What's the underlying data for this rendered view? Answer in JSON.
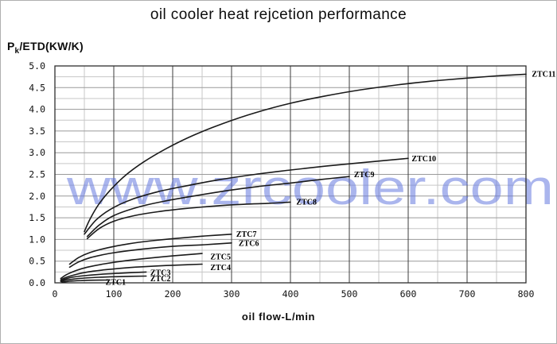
{
  "frame": {
    "background": "#ffffff",
    "border_color": "#b0b0b0"
  },
  "watermark": {
    "text": "www.zrcooler.com",
    "color": "#6679e0",
    "opacity": 0.55
  },
  "colors": {
    "curve": "#1a1a1a",
    "grid_minor": "#c7c7c7",
    "grid_major_h": "#9a9a9a",
    "grid_major_v": "#3c3c3c",
    "plot_border": "#2e2e2e",
    "tick_text": "#111111",
    "series_label_text": "#000000"
  },
  "chart_data": {
    "type": "line",
    "title": "oil cooler heat rejcetion performance",
    "xlabel": "oil flow-L/min",
    "ylabel": "Pk/ETD(KW/K)",
    "ylabel_parts": {
      "pre": "P",
      "sub": "k",
      "post": "/ETD(KW/K)"
    },
    "xlim": [
      0,
      800
    ],
    "ylim": [
      0,
      5
    ],
    "x_major_step": 100,
    "x_minor_step": 50,
    "y_major_step": 0.5,
    "y_minor_step": 0.25,
    "grid": true,
    "legend_position": "inline end-of-curve labels",
    "x_tick_labels": [
      "0",
      "100",
      "200",
      "300",
      "400",
      "500",
      "600",
      "700",
      "800"
    ],
    "y_tick_labels": [
      "0.0",
      "0.5",
      "1.0",
      "1.5",
      "2.0",
      "2.5",
      "3.0",
      "3.5",
      "4.0",
      "4.5",
      "5.0"
    ],
    "series": [
      {
        "name": "ZTC1",
        "label_xy": [
          86,
          0.015
        ],
        "points": [
          [
            12,
            0.015
          ],
          [
            20,
            0.03
          ],
          [
            30,
            0.042
          ],
          [
            45,
            0.052
          ],
          [
            65,
            0.06
          ],
          [
            90,
            0.065
          ]
        ]
      },
      {
        "name": "ZTC2",
        "label_xy": [
          162,
          0.105
        ],
        "points": [
          [
            10,
            0.03
          ],
          [
            18,
            0.06
          ],
          [
            30,
            0.085
          ],
          [
            50,
            0.11
          ],
          [
            75,
            0.128
          ],
          [
            110,
            0.143
          ],
          [
            155,
            0.155
          ]
        ]
      },
      {
        "name": "ZTC3",
        "label_xy": [
          162,
          0.235
        ],
        "points": [
          [
            10,
            0.05
          ],
          [
            18,
            0.09
          ],
          [
            30,
            0.13
          ],
          [
            50,
            0.165
          ],
          [
            75,
            0.195
          ],
          [
            110,
            0.222
          ],
          [
            155,
            0.25
          ]
        ]
      },
      {
        "name": "ZTC4",
        "label_xy": [
          264,
          0.36
        ],
        "points": [
          [
            10,
            0.07
          ],
          [
            20,
            0.13
          ],
          [
            35,
            0.19
          ],
          [
            55,
            0.25
          ],
          [
            85,
            0.3
          ],
          [
            120,
            0.345
          ],
          [
            160,
            0.38
          ],
          [
            200,
            0.405
          ],
          [
            250,
            0.43
          ]
        ]
      },
      {
        "name": "ZTC5",
        "label_xy": [
          264,
          0.6
        ],
        "points": [
          [
            10,
            0.1
          ],
          [
            20,
            0.19
          ],
          [
            35,
            0.28
          ],
          [
            55,
            0.36
          ],
          [
            85,
            0.44
          ],
          [
            120,
            0.51
          ],
          [
            160,
            0.57
          ],
          [
            200,
            0.62
          ],
          [
            250,
            0.675
          ]
        ]
      },
      {
        "name": "ZTC6",
        "label_xy": [
          312,
          0.92
        ],
        "points": [
          [
            25,
            0.36
          ],
          [
            40,
            0.48
          ],
          [
            60,
            0.58
          ],
          [
            90,
            0.67
          ],
          [
            125,
            0.74
          ],
          [
            165,
            0.8
          ],
          [
            210,
            0.85
          ],
          [
            255,
            0.88
          ],
          [
            300,
            0.92
          ]
        ]
      },
      {
        "name": "ZTC7",
        "label_xy": [
          308,
          1.13
        ],
        "points": [
          [
            25,
            0.43
          ],
          [
            40,
            0.58
          ],
          [
            60,
            0.7
          ],
          [
            90,
            0.81
          ],
          [
            125,
            0.9
          ],
          [
            165,
            0.97
          ],
          [
            210,
            1.03
          ],
          [
            255,
            1.08
          ],
          [
            300,
            1.12
          ]
        ]
      },
      {
        "name": "ZTC8",
        "label_xy": [
          410,
          1.87
        ],
        "points": [
          [
            55,
            1.02
          ],
          [
            75,
            1.25
          ],
          [
            100,
            1.42
          ],
          [
            135,
            1.55
          ],
          [
            175,
            1.64
          ],
          [
            220,
            1.71
          ],
          [
            270,
            1.77
          ],
          [
            320,
            1.81
          ],
          [
            360,
            1.83
          ],
          [
            400,
            1.86
          ]
        ]
      },
      {
        "name": "ZTC9",
        "label_xy": [
          508,
          2.5
        ],
        "points": [
          [
            55,
            1.07
          ],
          [
            75,
            1.33
          ],
          [
            100,
            1.55
          ],
          [
            140,
            1.74
          ],
          [
            185,
            1.88
          ],
          [
            235,
            2.0
          ],
          [
            290,
            2.12
          ],
          [
            345,
            2.22
          ],
          [
            400,
            2.3
          ],
          [
            450,
            2.38
          ],
          [
            500,
            2.45
          ]
        ]
      },
      {
        "name": "ZTC10",
        "label_xy": [
          606,
          2.87
        ],
        "points": [
          [
            50,
            1.12
          ],
          [
            70,
            1.45
          ],
          [
            95,
            1.7
          ],
          [
            130,
            1.92
          ],
          [
            175,
            2.1
          ],
          [
            225,
            2.24
          ],
          [
            280,
            2.38
          ],
          [
            340,
            2.5
          ],
          [
            400,
            2.6
          ],
          [
            460,
            2.69
          ],
          [
            520,
            2.77
          ],
          [
            600,
            2.87
          ]
        ]
      },
      {
        "name": "ZTC11",
        "label_xy": [
          810,
          4.82
        ],
        "points": [
          [
            50,
            1.18
          ],
          [
            60,
            1.48
          ],
          [
            75,
            1.82
          ],
          [
            95,
            2.15
          ],
          [
            120,
            2.48
          ],
          [
            150,
            2.78
          ],
          [
            190,
            3.1
          ],
          [
            235,
            3.4
          ],
          [
            285,
            3.67
          ],
          [
            340,
            3.92
          ],
          [
            400,
            4.14
          ],
          [
            460,
            4.31
          ],
          [
            520,
            4.45
          ],
          [
            580,
            4.56
          ],
          [
            640,
            4.65
          ],
          [
            700,
            4.72
          ],
          [
            750,
            4.77
          ],
          [
            800,
            4.81
          ]
        ]
      }
    ]
  }
}
